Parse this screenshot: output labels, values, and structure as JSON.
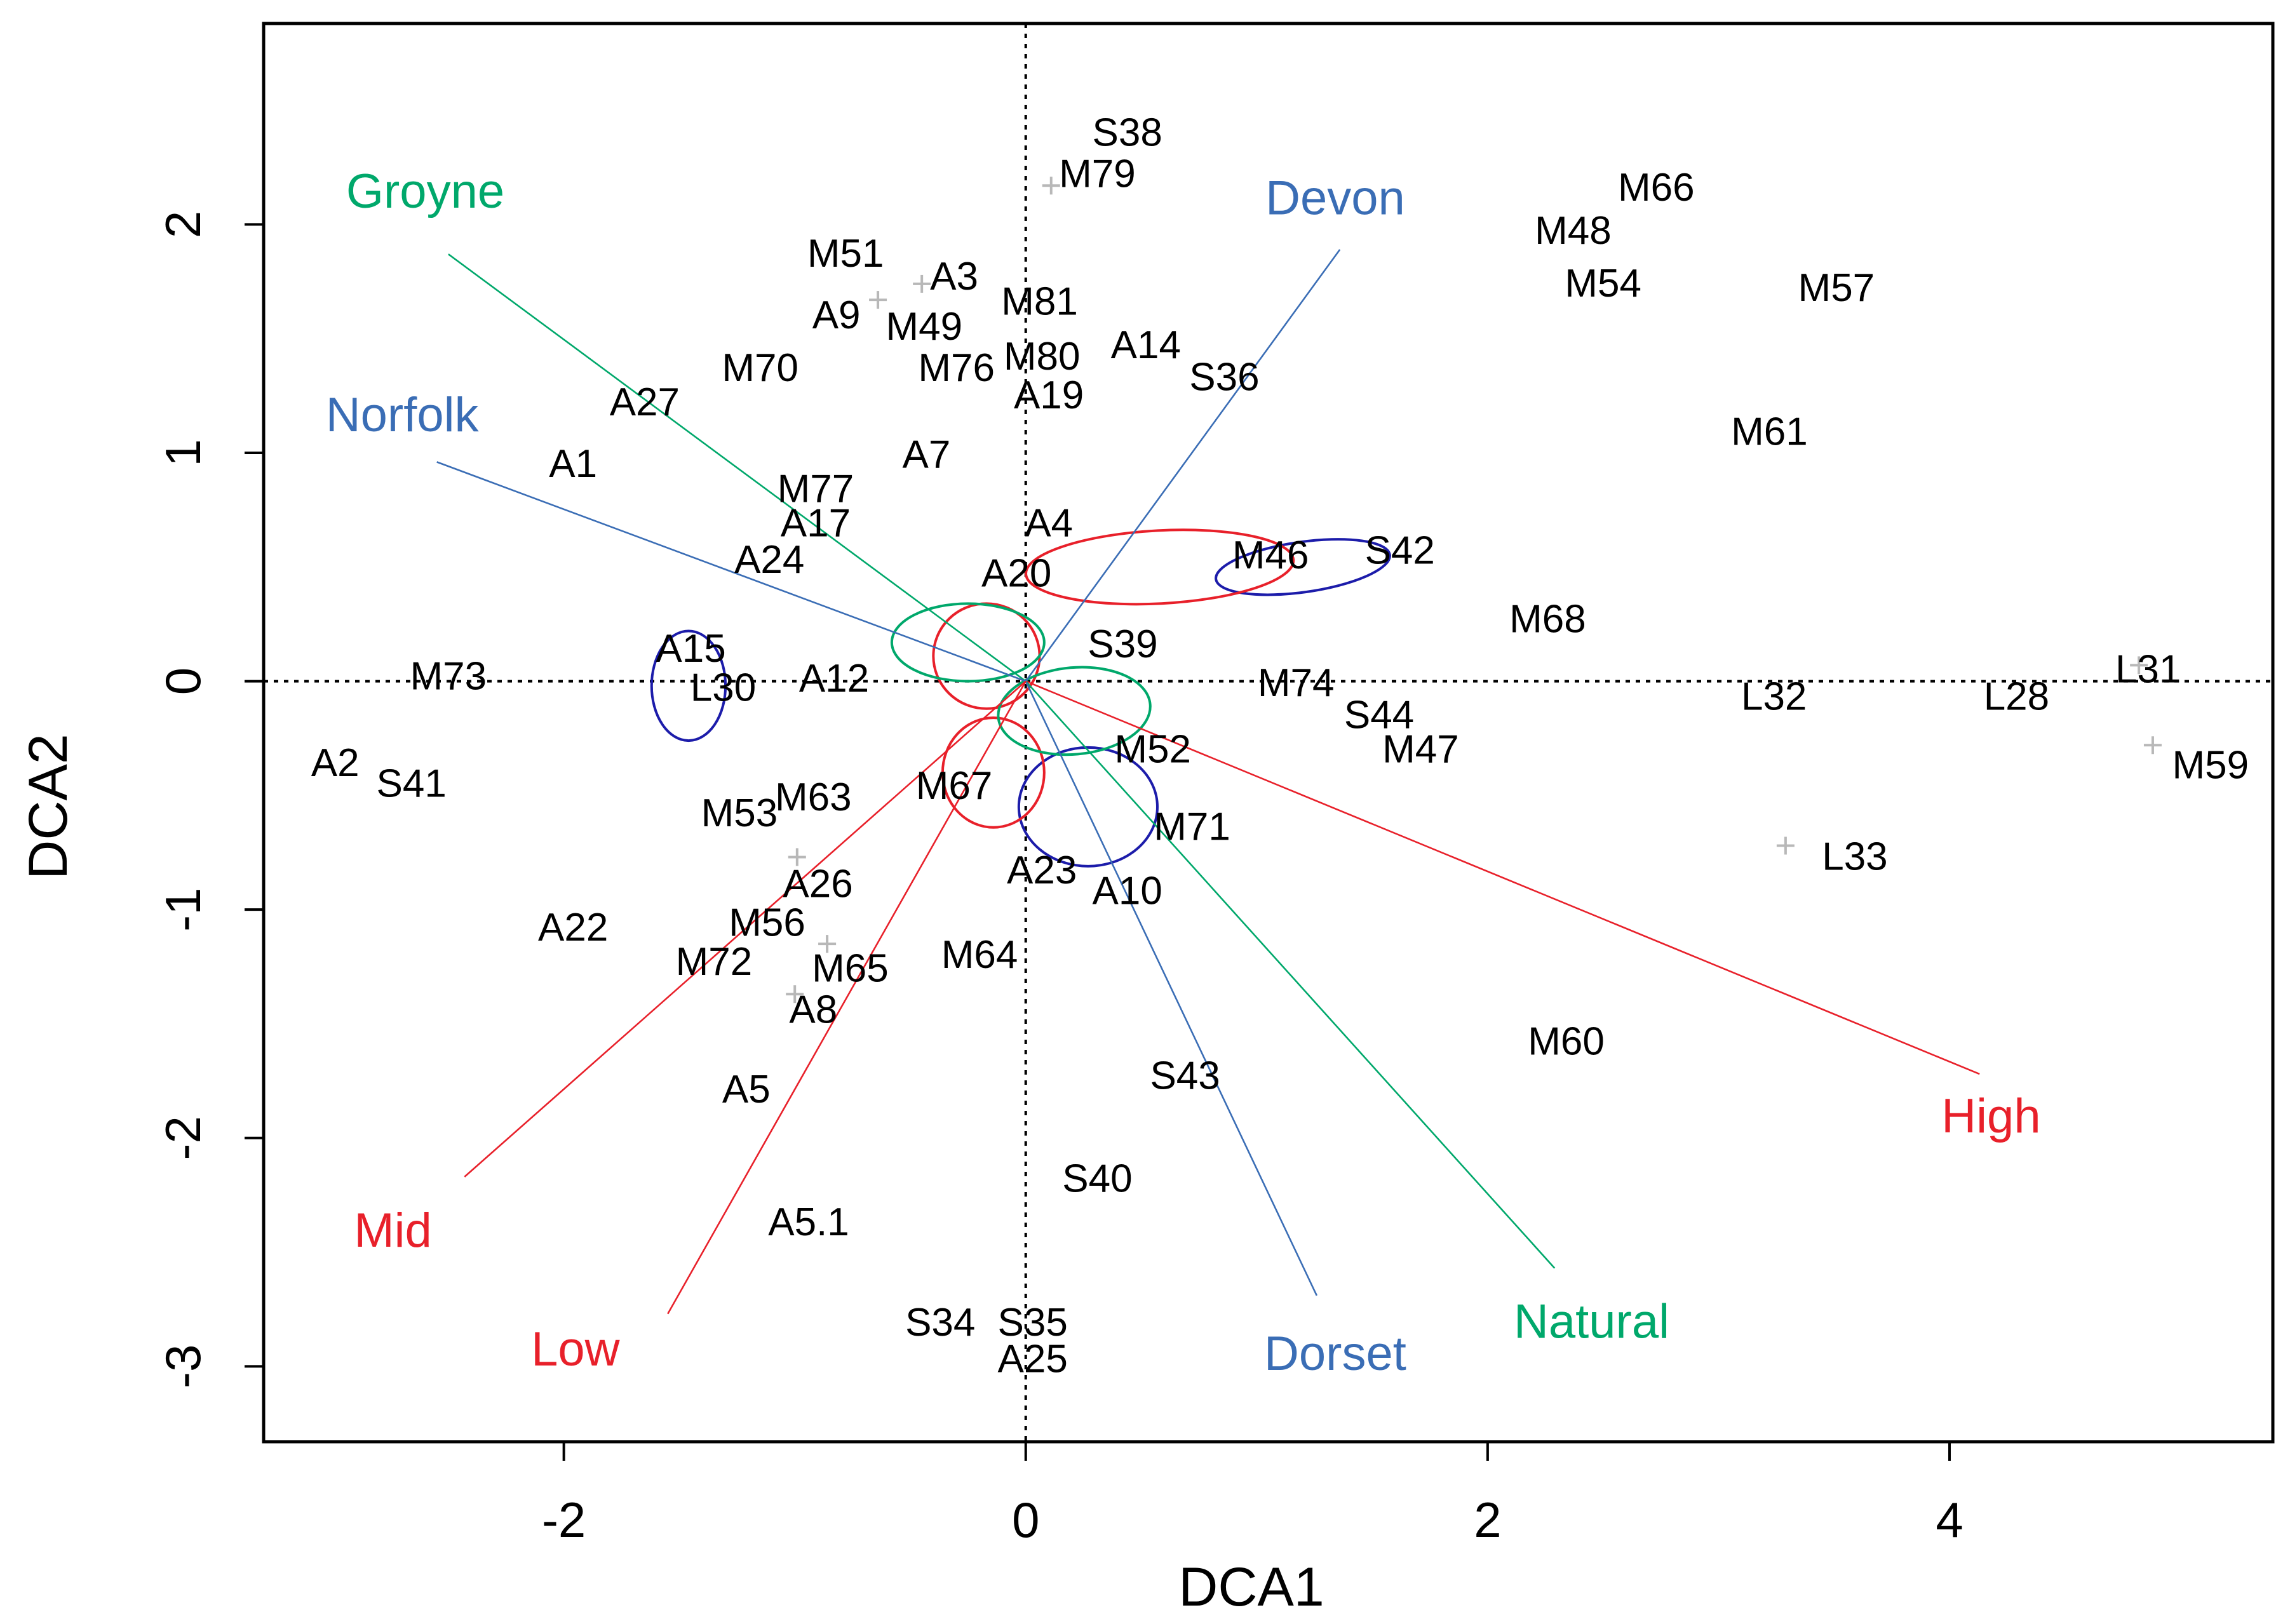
{
  "chart_data": {
    "type": "scatter",
    "title": "",
    "xlabel": "DCA1",
    "ylabel": "DCA2",
    "xlim": [
      -3.3,
      5.4
    ],
    "ylim": [
      -3.33,
      2.88
    ],
    "xticks": [
      -2,
      0,
      2,
      4
    ],
    "yticks": [
      -3,
      -2,
      -1,
      0,
      1,
      2
    ],
    "reference_lines": {
      "x": 0,
      "y": 0,
      "style": "dotted"
    },
    "colors": {
      "green": "#00a86b",
      "blue": "#3a6db5",
      "red": "#e8202a",
      "navy": "#1c1caa",
      "point": "#b8b8b8"
    },
    "sites": [
      {
        "label": "S38",
        "x": 0.44,
        "y": 2.39
      },
      {
        "label": "M79",
        "x": 0.31,
        "y": 2.21
      },
      {
        "label": "M66",
        "x": 2.73,
        "y": 2.15
      },
      {
        "label": "M48",
        "x": 2.37,
        "y": 1.96
      },
      {
        "label": "M54",
        "x": 2.5,
        "y": 1.73
      },
      {
        "label": "M57",
        "x": 3.51,
        "y": 1.71
      },
      {
        "label": "M51",
        "x": -0.78,
        "y": 1.86
      },
      {
        "label": "A3",
        "x": -0.31,
        "y": 1.76
      },
      {
        "label": "M81",
        "x": 0.06,
        "y": 1.65
      },
      {
        "label": "A9",
        "x": -0.82,
        "y": 1.59
      },
      {
        "label": "M49",
        "x": -0.44,
        "y": 1.54
      },
      {
        "label": "A14",
        "x": 0.52,
        "y": 1.46
      },
      {
        "label": "M80",
        "x": 0.07,
        "y": 1.41
      },
      {
        "label": "M76",
        "x": -0.3,
        "y": 1.36
      },
      {
        "label": "M70",
        "x": -1.15,
        "y": 1.36
      },
      {
        "label": "S36",
        "x": 0.86,
        "y": 1.32
      },
      {
        "label": "A19",
        "x": 0.1,
        "y": 1.24
      },
      {
        "label": "A27",
        "x": -1.65,
        "y": 1.21
      },
      {
        "label": "M61",
        "x": 3.22,
        "y": 1.08
      },
      {
        "label": "A1",
        "x": -1.96,
        "y": 0.94
      },
      {
        "label": "A7",
        "x": -0.43,
        "y": 0.98
      },
      {
        "label": "M77",
        "x": -0.91,
        "y": 0.83
      },
      {
        "label": "A17",
        "x": -0.91,
        "y": 0.68
      },
      {
        "label": "A4",
        "x": 0.1,
        "y": 0.68
      },
      {
        "label": "A24",
        "x": -1.11,
        "y": 0.52
      },
      {
        "label": "M46",
        "x": 1.06,
        "y": 0.54
      },
      {
        "label": "S42",
        "x": 1.62,
        "y": 0.56
      },
      {
        "label": "A20",
        "x": -0.04,
        "y": 0.46
      },
      {
        "label": "M68",
        "x": 2.26,
        "y": 0.26
      },
      {
        "label": "A15",
        "x": -1.45,
        "y": 0.13
      },
      {
        "label": "S39",
        "x": 0.42,
        "y": 0.15
      },
      {
        "label": "M73",
        "x": -2.5,
        "y": 0.01
      },
      {
        "label": "A12",
        "x": -0.83,
        "y": 0.0
      },
      {
        "label": "L30",
        "x": -1.31,
        "y": -0.04
      },
      {
        "label": "M74",
        "x": 1.17,
        "y": -0.02
      },
      {
        "label": "L31",
        "x": 4.86,
        "y": 0.04
      },
      {
        "label": "L32",
        "x": 3.24,
        "y": -0.08
      },
      {
        "label": "L28",
        "x": 4.29,
        "y": -0.08
      },
      {
        "label": "S44",
        "x": 1.53,
        "y": -0.16
      },
      {
        "label": "M47",
        "x": 1.71,
        "y": -0.31
      },
      {
        "label": "M52",
        "x": 0.55,
        "y": -0.31
      },
      {
        "label": "M59",
        "x": 5.13,
        "y": -0.38
      },
      {
        "label": "A2",
        "x": -2.99,
        "y": -0.37
      },
      {
        "label": "S41",
        "x": -2.66,
        "y": -0.46
      },
      {
        "label": "M67",
        "x": -0.31,
        "y": -0.47
      },
      {
        "label": "M63",
        "x": -0.92,
        "y": -0.52
      },
      {
        "label": "M53",
        "x": -1.24,
        "y": -0.59
      },
      {
        "label": "M71",
        "x": 0.72,
        "y": -0.65
      },
      {
        "label": "L33",
        "x": 3.59,
        "y": -0.78
      },
      {
        "label": "A23",
        "x": 0.07,
        "y": -0.84
      },
      {
        "label": "A10",
        "x": 0.44,
        "y": -0.93
      },
      {
        "label": "A26",
        "x": -0.9,
        "y": -0.9
      },
      {
        "label": "M56",
        "x": -1.12,
        "y": -1.07
      },
      {
        "label": "A22",
        "x": -1.96,
        "y": -1.09
      },
      {
        "label": "M72",
        "x": -1.35,
        "y": -1.24
      },
      {
        "label": "M65",
        "x": -0.76,
        "y": -1.27
      },
      {
        "label": "M64",
        "x": -0.2,
        "y": -1.21
      },
      {
        "label": "A8",
        "x": -0.92,
        "y": -1.45
      },
      {
        "label": "M60",
        "x": 2.34,
        "y": -1.59
      },
      {
        "label": "A5",
        "x": -1.21,
        "y": -1.8
      },
      {
        "label": "S43",
        "x": 0.69,
        "y": -1.74
      },
      {
        "label": "S40",
        "x": 0.31,
        "y": -2.19
      },
      {
        "label": "A5.1",
        "x": -0.94,
        "y": -2.38
      },
      {
        "label": "S34",
        "x": -0.37,
        "y": -2.82
      },
      {
        "label": "S35",
        "x": 0.03,
        "y": -2.82
      },
      {
        "label": "A25",
        "x": 0.03,
        "y": -2.98
      }
    ],
    "points": [
      {
        "x": 0.11,
        "y": 2.17
      },
      {
        "x": -0.45,
        "y": 1.74
      },
      {
        "x": -0.64,
        "y": 1.67
      },
      {
        "x": -0.99,
        "y": -0.77
      },
      {
        "x": -0.86,
        "y": -1.15
      },
      {
        "x": -1.0,
        "y": -1.37
      },
      {
        "x": 3.29,
        "y": -0.72
      },
      {
        "x": 4.82,
        "y": 0.07
      },
      {
        "x": 4.88,
        "y": -0.28
      }
    ],
    "vectors": [
      {
        "label": "Groyne",
        "color": "green",
        "x": -2.5,
        "y": 1.87,
        "label_x": -2.6,
        "label_y": 2.13
      },
      {
        "label": "Norfolk",
        "color": "blue",
        "x": -2.55,
        "y": 0.96,
        "label_x": -2.7,
        "label_y": 1.15
      },
      {
        "label": "Devon",
        "color": "blue",
        "x": 1.36,
        "y": 1.89,
        "label_x": 1.34,
        "label_y": 2.1
      },
      {
        "label": "High",
        "color": "red",
        "x": 4.13,
        "y": -1.72,
        "label_x": 4.18,
        "label_y": -1.92
      },
      {
        "label": "Natural",
        "color": "green",
        "x": 2.29,
        "y": -2.57,
        "label_x": 2.45,
        "label_y": -2.82
      },
      {
        "label": "Dorset",
        "color": "blue",
        "x": 1.26,
        "y": -2.69,
        "label_x": 1.34,
        "label_y": -2.96
      },
      {
        "label": "Mid",
        "color": "red",
        "x": -2.43,
        "y": -2.17,
        "label_x": -2.74,
        "label_y": -2.42
      },
      {
        "label": "Low",
        "color": "red",
        "x": -1.55,
        "y": -2.77,
        "label_x": -1.95,
        "label_y": -2.94
      }
    ],
    "ellipses": [
      {
        "color": "navy",
        "cx": -1.46,
        "cy": -0.02,
        "rx": 0.16,
        "ry": 0.24,
        "rot": 0
      },
      {
        "color": "navy",
        "cx": 1.2,
        "cy": 0.5,
        "rx": 0.38,
        "ry": 0.11,
        "rot": -8
      },
      {
        "color": "navy",
        "cx": 0.27,
        "cy": -0.55,
        "rx": 0.3,
        "ry": 0.26,
        "rot": 0
      },
      {
        "color": "red",
        "cx": 0.58,
        "cy": 0.5,
        "rx": 0.58,
        "ry": 0.16,
        "rot": -3
      },
      {
        "color": "red",
        "cx": -0.17,
        "cy": 0.11,
        "rx": 0.23,
        "ry": 0.23,
        "rot": 0
      },
      {
        "color": "red",
        "cx": -0.14,
        "cy": -0.4,
        "rx": 0.22,
        "ry": 0.24,
        "rot": 0
      },
      {
        "color": "green",
        "cx": -0.25,
        "cy": 0.17,
        "rx": 0.33,
        "ry": 0.17,
        "rot": 0
      },
      {
        "color": "green",
        "cx": 0.21,
        "cy": -0.13,
        "rx": 0.33,
        "ry": 0.19,
        "rot": -5
      }
    ]
  }
}
